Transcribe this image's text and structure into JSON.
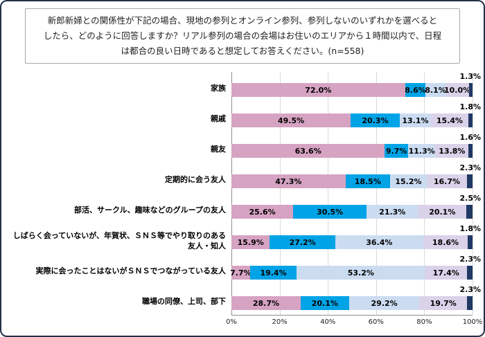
{
  "title": {
    "lines": [
      "新郎新婦との関係性が下記の場合、現地の参列とオンライン参列、参列しないのいずれかを選べると",
      "したら、どのように回答しますか？リアル参列の場合の会場はお住いのエリアから１時間以内で、日程",
      "は都合の良い日時であると想定してお答えください。(n=558)"
    ]
  },
  "chart_data": {
    "type": "bar",
    "orientation": "horizontal",
    "stacked": true,
    "unit": "%",
    "categories": [
      "家族",
      "親戚",
      "親友",
      "定期的に会う友人",
      "部活、サークル、趣味などのグループの友人",
      "しばらく会っていないが、年賀状、ＳＮＳ等でやり取りのある友人・知人",
      "実際に会ったことはないがＳＮＳでつながっている友人",
      "職場の同僚、上司、部下"
    ],
    "series": [
      {
        "name": "pink",
        "color": "#D6A3C2",
        "show_labels": true,
        "values": [
          72.0,
          49.5,
          63.6,
          47.3,
          25.6,
          15.9,
          7.7,
          28.7
        ]
      },
      {
        "name": "blue",
        "color": "#00A3E6",
        "show_labels": true,
        "values": [
          8.6,
          20.3,
          9.7,
          18.5,
          30.5,
          27.2,
          19.4,
          20.1
        ]
      },
      {
        "name": "light-blue",
        "color": "#CBDCF1",
        "show_labels": true,
        "values": [
          8.1,
          13.1,
          11.3,
          15.2,
          21.3,
          36.4,
          53.2,
          29.2
        ]
      },
      {
        "name": "lavender",
        "color": "#D9D2E9",
        "show_labels": true,
        "values": [
          10.0,
          15.4,
          13.8,
          16.7,
          20.1,
          18.6,
          17.4,
          19.7
        ]
      },
      {
        "name": "navy",
        "color": "#203864",
        "show_labels": false,
        "values": [
          1.3,
          1.8,
          1.6,
          2.3,
          2.5,
          1.8,
          2.3,
          2.3
        ]
      }
    ],
    "x_axis": {
      "min": 0,
      "max": 100,
      "ticks": [
        "0%",
        "20%",
        "40%",
        "60%",
        "80%",
        "100%"
      ]
    },
    "grid": true,
    "legend": "none"
  }
}
